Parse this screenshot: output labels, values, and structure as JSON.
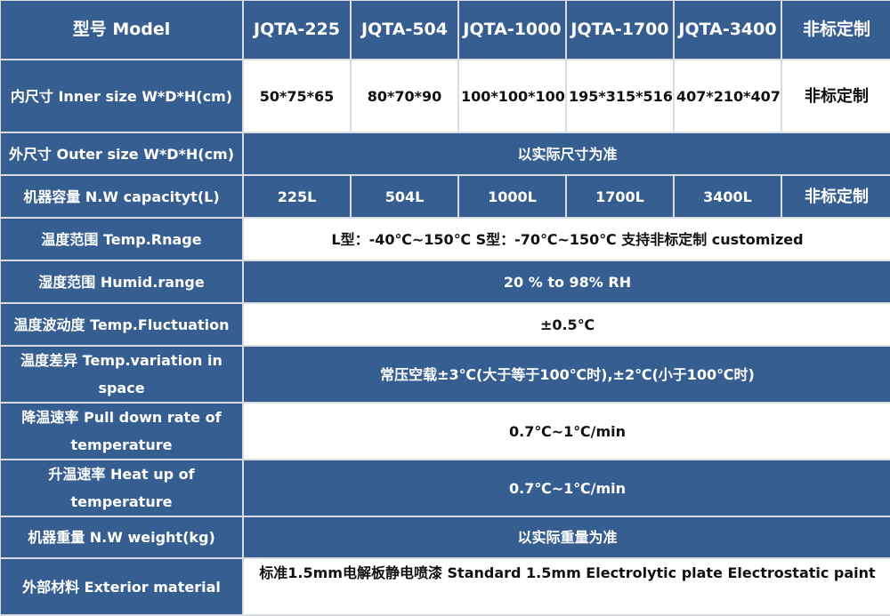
{
  "colors": {
    "header_blue": "#365e90",
    "border": "#d9dde3"
  },
  "header": {
    "label": "型号 Model",
    "models": [
      "JQTA-225",
      "JQTA-504",
      "JQTA-1000",
      "JQTA-1700",
      "JQTA-3400",
      "非标定制"
    ]
  },
  "inner_size": {
    "label": "内尺寸 Inner size W*D*H(cm)",
    "values": [
      "50*75*65",
      "80*70*90",
      "100*100*100",
      "195*315*516",
      "407*210*407",
      "非标定制"
    ]
  },
  "outer_size": {
    "label": "外尺寸 Outer size W*D*H(cm)",
    "value": "以实际尺寸为准"
  },
  "capacity": {
    "label": "机器容量 N.W capacityt(L)",
    "values": [
      "225L",
      "504L",
      "1000L",
      "1700L",
      "3400L",
      "非标定制"
    ]
  },
  "temp_range": {
    "label": "温度范围 Temp.Rnage",
    "value": "L型：-40℃~150℃   S型：-70℃~150℃  支持非标定制 customized"
  },
  "humid_range": {
    "label": "湿度范围 Humid.range",
    "value": "20 % to 98% RH"
  },
  "temp_fluctuation": {
    "label": "温度波动度 Temp.Fluctuation",
    "value": "±0.5℃"
  },
  "temp_variation": {
    "label": "温度差异 Temp.variation in space",
    "value": "常压空载±3℃(大于等于100℃时),±2℃(小于100℃时)"
  },
  "pull_down": {
    "label": "降温速率 Pull down rate of temperature",
    "value": "0.7℃~1℃/min"
  },
  "heat_up": {
    "label": "升温速率 Heat up of temperature",
    "value": "0.7℃~1℃/min"
  },
  "weight": {
    "label": "机器重量 N.W weight(kg)",
    "value": "以实际重量为准"
  },
  "exterior": {
    "label": "外部材料 Exterior material",
    "value": "标准1.5mm电解板静电喷漆  Standard 1.5mm Electrolytic plate Electrostatic paint"
  }
}
